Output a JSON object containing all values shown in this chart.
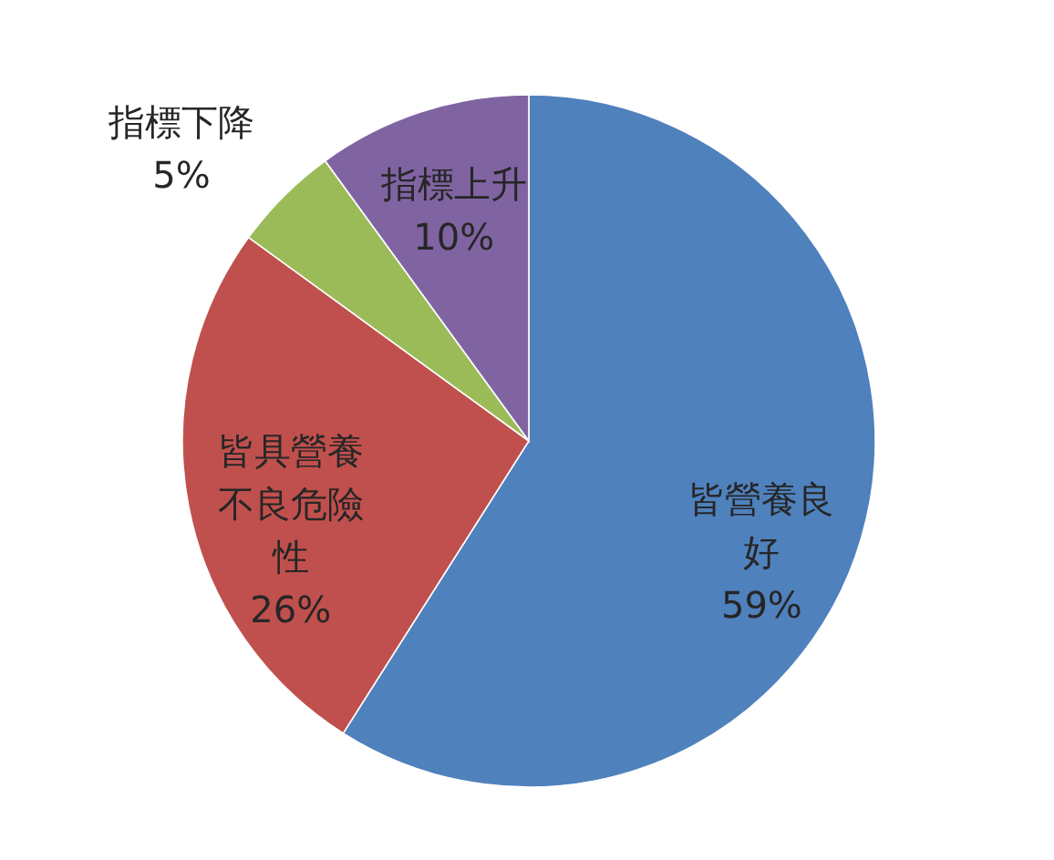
{
  "chart_data": {
    "type": "pie",
    "categories": [
      "皆營養良好",
      "皆具營養不良危險性",
      "指標下降",
      "指標上升"
    ],
    "values": [
      59,
      26,
      5,
      10
    ],
    "colors": [
      "#4f81bd",
      "#c0504d",
      "#9bbb59",
      "#8064a2"
    ],
    "value_labels": [
      "59%",
      "26%",
      "5%",
      "10%"
    ]
  }
}
